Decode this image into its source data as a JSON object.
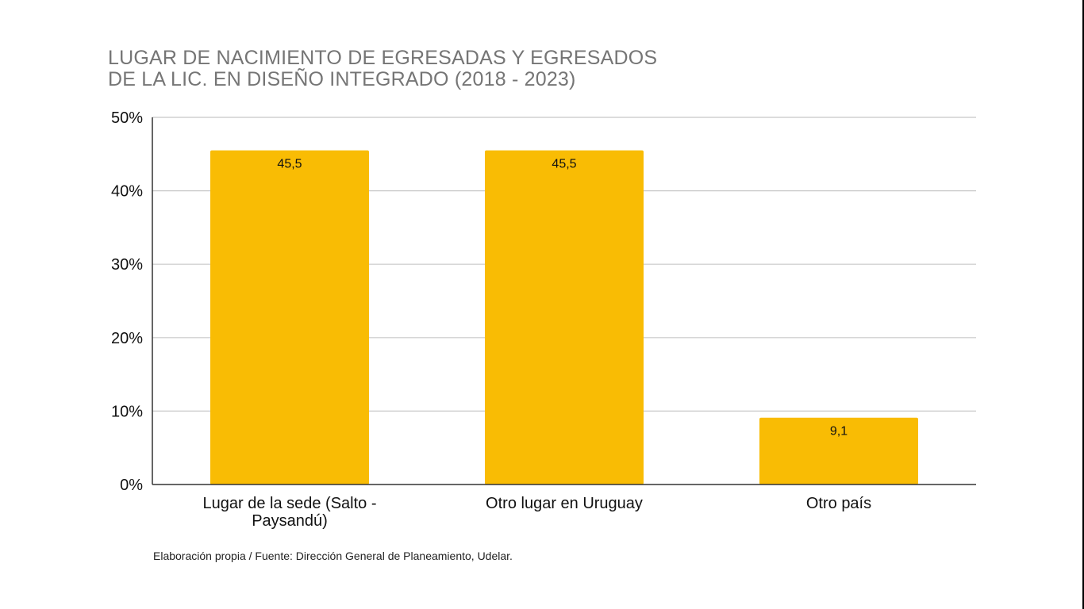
{
  "title_lines": [
    "LUGAR DE NACIMIENTO DE EGRESADAS Y EGRESADOS",
    "DE LA LIC. EN DISEÑO INTEGRADO (2018 - 2023)"
  ],
  "source_note": "Elaboración propia / Fuente: Dirección General de Planeamiento, Udelar.",
  "colors": {
    "bar": "#F9BC04",
    "grid": "#C8C8C8",
    "axis": "#333333",
    "title": "#757575"
  },
  "chart_data": {
    "type": "bar",
    "categories": [
      [
        "Lugar de la sede (Salto -",
        "Paysandú)"
      ],
      [
        "Otro lugar en Uruguay"
      ],
      [
        "Otro país"
      ]
    ],
    "values": [
      45.5,
      45.5,
      9.1
    ],
    "value_labels": [
      "45,5",
      "45,5",
      "9,1"
    ],
    "ylim": [
      0,
      50
    ],
    "yticks": [
      0,
      10,
      20,
      30,
      40,
      50
    ],
    "ytick_labels": [
      "0%",
      "10%",
      "20%",
      "30%",
      "40%",
      "50%"
    ],
    "grid": true,
    "legend": "none",
    "xlabel": "",
    "ylabel": ""
  }
}
